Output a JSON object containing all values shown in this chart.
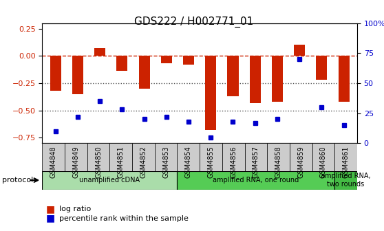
{
  "title": "GDS222 / H002771_01",
  "samples": [
    "GSM4848",
    "GSM4849",
    "GSM4850",
    "GSM4851",
    "GSM4852",
    "GSM4853",
    "GSM4854",
    "GSM4855",
    "GSM4856",
    "GSM4857",
    "GSM4858",
    "GSM4859",
    "GSM4860",
    "GSM4861"
  ],
  "log_ratio": [
    -0.32,
    -0.35,
    0.07,
    -0.14,
    -0.3,
    -0.07,
    -0.08,
    -0.68,
    -0.37,
    -0.43,
    -0.42,
    0.1,
    -0.22,
    -0.42
  ],
  "percentile_rank": [
    10,
    22,
    35,
    28,
    20,
    22,
    18,
    5,
    18,
    17,
    20,
    70,
    30,
    15
  ],
  "ylim_left": [
    -0.8,
    0.3
  ],
  "ylim_right": [
    0,
    100
  ],
  "hline_y": 0,
  "dotted_lines": [
    -0.25,
    -0.5
  ],
  "bar_color": "#cc2200",
  "dot_color": "#0000cc",
  "hline_color": "#cc2200",
  "dotted_color": "#555555",
  "protocol_groups": [
    {
      "label": "unamplified cDNA",
      "start": 0,
      "end": 5,
      "color": "#aaddaa"
    },
    {
      "label": "amplified RNA, one round",
      "start": 6,
      "end": 12,
      "color": "#55cc55"
    },
    {
      "label": "amplified RNA,\ntwo rounds",
      "start": 13,
      "end": 13,
      "color": "#44bb44"
    }
  ],
  "legend_items": [
    {
      "label": "log ratio",
      "color": "#cc2200",
      "marker": "s"
    },
    {
      "label": "percentile rank within the sample",
      "color": "#0000cc",
      "marker": "s"
    }
  ],
  "left_yticks": [
    0.25,
    0,
    -0.25,
    -0.5,
    -0.75
  ],
  "right_yticks": [
    100,
    75,
    50,
    25,
    0
  ],
  "protocol_label": "protocol"
}
